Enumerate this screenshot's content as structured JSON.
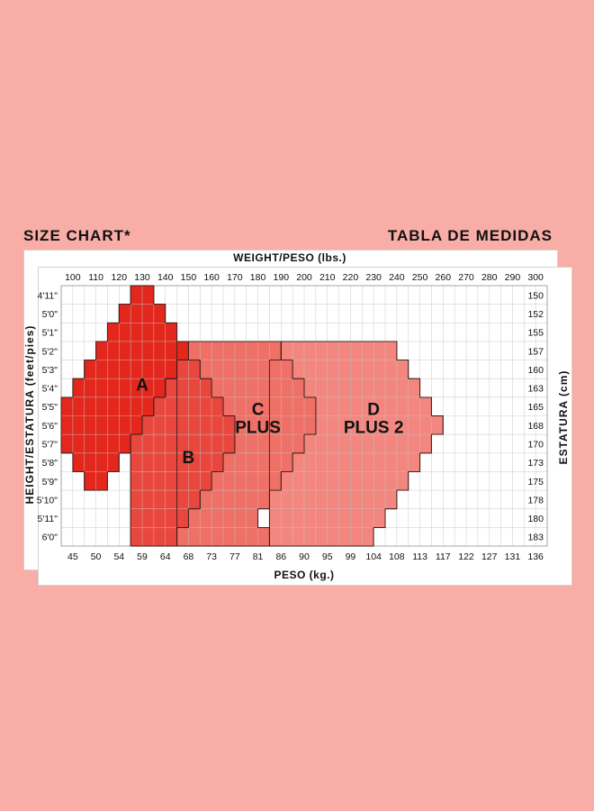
{
  "header": {
    "left_title": "SIZE CHART*",
    "right_title": "TABLA DE MEDIDAS"
  },
  "chart_data": {
    "type": "heatmap",
    "title_left": "SIZE CHART*",
    "title_right": "TABLA DE MEDIDAS",
    "x_top_label": "WEIGHT/PESO (lbs.)",
    "x_bottom_label": "PESO (kg.)",
    "y_left_label": "HEIGHT/ESTATURA (feet/pies)",
    "y_right_label": "ESTATURA (cm)",
    "lbs_ticks": [
      "100",
      "110",
      "120",
      "130",
      "140",
      "150",
      "160",
      "170",
      "180",
      "190",
      "200",
      "210",
      "220",
      "230",
      "240",
      "250",
      "260",
      "270",
      "280",
      "290",
      "300"
    ],
    "kg_ticks": [
      "45",
      "50",
      "54",
      "59",
      "64",
      "68",
      "73",
      "77",
      "81",
      "86",
      "90",
      "95",
      "99",
      "104",
      "108",
      "113",
      "117",
      "122",
      "127",
      "131",
      "136"
    ],
    "heights_ft": [
      "4'11\"",
      "5'0\"",
      "5'1\"",
      "5'2\"",
      "5'3\"",
      "5'4\"",
      "5'5\"",
      "5'6\"",
      "5'7\"",
      "5'8\"",
      "5'9\"",
      "5'10\"",
      "5'11\"",
      "6'0\""
    ],
    "heights_cm": [
      "150",
      "152",
      "155",
      "157",
      "160",
      "163",
      "165",
      "168",
      "170",
      "173",
      "175",
      "178",
      "180",
      "183"
    ],
    "zones": [
      {
        "name": "D",
        "label_lines": [
          "D",
          "PLUS 2"
        ],
        "color": "#f3877f",
        "ranges_lbs": [
          null,
          null,
          null,
          [
            190,
            240
          ],
          [
            185,
            245
          ],
          [
            185,
            250
          ],
          [
            185,
            255
          ],
          [
            185,
            260
          ],
          [
            185,
            255
          ],
          [
            185,
            250
          ],
          [
            185,
            245
          ],
          [
            185,
            240
          ],
          [
            185,
            235
          ],
          [
            185,
            230
          ]
        ]
      },
      {
        "name": "C",
        "label_lines": [
          "C",
          "PLUS"
        ],
        "color": "#ef7066",
        "ranges_lbs": [
          null,
          null,
          null,
          [
            145,
            190
          ],
          [
            145,
            195
          ],
          [
            145,
            200
          ],
          [
            145,
            205
          ],
          [
            145,
            205
          ],
          [
            145,
            200
          ],
          [
            145,
            195
          ],
          [
            145,
            190
          ],
          [
            145,
            185
          ],
          [
            145,
            180
          ],
          [
            145,
            185
          ]
        ]
      },
      {
        "name": "B",
        "label_lines": [
          "B"
        ],
        "color": "#e9473d",
        "ranges_lbs": [
          null,
          null,
          null,
          null,
          [
            145,
            155
          ],
          [
            140,
            160
          ],
          [
            135,
            165
          ],
          [
            130,
            170
          ],
          [
            125,
            170
          ],
          [
            125,
            165
          ],
          [
            125,
            160
          ],
          [
            125,
            155
          ],
          [
            125,
            150
          ],
          [
            125,
            145
          ]
        ]
      },
      {
        "name": "A",
        "label_lines": [
          "A"
        ],
        "color": "#e4271d",
        "ranges_lbs": [
          [
            125,
            135
          ],
          [
            120,
            140
          ],
          [
            115,
            145
          ],
          [
            110,
            150
          ],
          [
            105,
            145
          ],
          [
            100,
            140
          ],
          [
            95,
            135
          ],
          [
            95,
            130
          ],
          [
            95,
            125
          ],
          [
            100,
            120
          ],
          [
            105,
            115
          ],
          null,
          null,
          null
        ]
      }
    ],
    "grid": true
  }
}
